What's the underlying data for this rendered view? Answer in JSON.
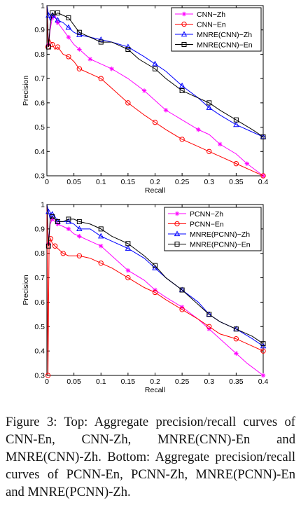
{
  "chart_data": [
    {
      "type": "line",
      "xlabel": "Recall",
      "ylabel": "Precision",
      "xlim": [
        0,
        0.4
      ],
      "ylim": [
        0.3,
        1.0
      ],
      "xticks": [
        0,
        0.05,
        0.1,
        0.15,
        0.2,
        0.25,
        0.3,
        0.35,
        0.4
      ],
      "xtick_labels": [
        "0",
        "0.05",
        "0.1",
        "0.15",
        "0.2",
        "0.25",
        "0.3",
        "0.35",
        "0.4"
      ],
      "yticks": [
        0.3,
        0.4,
        0.5,
        0.6,
        0.7,
        0.8,
        0.9,
        1
      ],
      "ytick_labels": [
        "0.3",
        "0.4",
        "0.5",
        "0.6",
        "0.7",
        "0.8",
        "0.9",
        "1"
      ],
      "grid": false,
      "legend_position": "top-right",
      "series": [
        {
          "name": "CNN−Zh",
          "color": "#ff00ff",
          "marker": "star",
          "points": [
            [
              0,
              1.0
            ],
            [
              0.003,
              0.84
            ],
            [
              0.006,
              0.9
            ],
            [
              0.01,
              0.95
            ],
            [
              0.015,
              0.96
            ],
            [
              0.02,
              0.93
            ],
            [
              0.03,
              0.9
            ],
            [
              0.04,
              0.87
            ],
            [
              0.05,
              0.84
            ],
            [
              0.06,
              0.82
            ],
            [
              0.07,
              0.8
            ],
            [
              0.08,
              0.78
            ],
            [
              0.1,
              0.76
            ],
            [
              0.12,
              0.74
            ],
            [
              0.15,
              0.7
            ],
            [
              0.18,
              0.65
            ],
            [
              0.2,
              0.61
            ],
            [
              0.22,
              0.57
            ],
            [
              0.25,
              0.53
            ],
            [
              0.28,
              0.49
            ],
            [
              0.3,
              0.47
            ],
            [
              0.32,
              0.43
            ],
            [
              0.35,
              0.39
            ],
            [
              0.37,
              0.35
            ],
            [
              0.4,
              0.3
            ]
          ]
        },
        {
          "name": "CNN−En",
          "color": "#ff0000",
          "marker": "circle",
          "points": [
            [
              0,
              1.0
            ],
            [
              0.002,
              0.83
            ],
            [
              0.005,
              0.86
            ],
            [
              0.01,
              0.84
            ],
            [
              0.015,
              0.82
            ],
            [
              0.02,
              0.83
            ],
            [
              0.03,
              0.8
            ],
            [
              0.04,
              0.79
            ],
            [
              0.05,
              0.77
            ],
            [
              0.06,
              0.74
            ],
            [
              0.08,
              0.72
            ],
            [
              0.1,
              0.7
            ],
            [
              0.12,
              0.66
            ],
            [
              0.15,
              0.6
            ],
            [
              0.18,
              0.55
            ],
            [
              0.2,
              0.52
            ],
            [
              0.22,
              0.49
            ],
            [
              0.25,
              0.45
            ],
            [
              0.28,
              0.42
            ],
            [
              0.3,
              0.4
            ],
            [
              0.32,
              0.38
            ],
            [
              0.35,
              0.35
            ],
            [
              0.38,
              0.32
            ],
            [
              0.4,
              0.3
            ]
          ]
        },
        {
          "name": "MNRE(CNN)−Zh",
          "color": "#0000ff",
          "marker": "triangle",
          "points": [
            [
              0,
              1.0
            ],
            [
              0.003,
              0.96
            ],
            [
              0.006,
              0.94
            ],
            [
              0.01,
              0.96
            ],
            [
              0.015,
              0.95
            ],
            [
              0.02,
              0.94
            ],
            [
              0.03,
              0.93
            ],
            [
              0.04,
              0.91
            ],
            [
              0.05,
              0.89
            ],
            [
              0.06,
              0.88
            ],
            [
              0.08,
              0.87
            ],
            [
              0.1,
              0.86
            ],
            [
              0.12,
              0.85
            ],
            [
              0.15,
              0.83
            ],
            [
              0.18,
              0.79
            ],
            [
              0.2,
              0.76
            ],
            [
              0.22,
              0.73
            ],
            [
              0.25,
              0.67
            ],
            [
              0.28,
              0.62
            ],
            [
              0.3,
              0.58
            ],
            [
              0.32,
              0.55
            ],
            [
              0.35,
              0.51
            ],
            [
              0.38,
              0.48
            ],
            [
              0.4,
              0.46
            ]
          ]
        },
        {
          "name": "MNRE(CNN)−En",
          "color": "#000000",
          "marker": "square",
          "points": [
            [
              0,
              1.0
            ],
            [
              0.003,
              0.83
            ],
            [
              0.006,
              0.92
            ],
            [
              0.01,
              0.97
            ],
            [
              0.015,
              0.96
            ],
            [
              0.02,
              0.97
            ],
            [
              0.03,
              0.96
            ],
            [
              0.04,
              0.95
            ],
            [
              0.05,
              0.92
            ],
            [
              0.06,
              0.89
            ],
            [
              0.08,
              0.87
            ],
            [
              0.1,
              0.85
            ],
            [
              0.12,
              0.85
            ],
            [
              0.15,
              0.82
            ],
            [
              0.17,
              0.78
            ],
            [
              0.2,
              0.74
            ],
            [
              0.22,
              0.7
            ],
            [
              0.25,
              0.65
            ],
            [
              0.28,
              0.62
            ],
            [
              0.3,
              0.6
            ],
            [
              0.32,
              0.57
            ],
            [
              0.35,
              0.53
            ],
            [
              0.38,
              0.49
            ],
            [
              0.4,
              0.46
            ]
          ]
        }
      ]
    },
    {
      "type": "line",
      "xlabel": "Recall",
      "ylabel": "Precision",
      "xlim": [
        0,
        0.4
      ],
      "ylim": [
        0.3,
        1.0
      ],
      "xticks": [
        0,
        0.05,
        0.1,
        0.15,
        0.2,
        0.25,
        0.3,
        0.35,
        0.4
      ],
      "xtick_labels": [
        "0",
        "0.05",
        "0.1",
        "0.15",
        "0.2",
        "0.25",
        "0.3",
        "0.35",
        "0.4"
      ],
      "yticks": [
        0.3,
        0.4,
        0.5,
        0.6,
        0.7,
        0.8,
        0.9,
        1
      ],
      "ytick_labels": [
        "0.3",
        "0.4",
        "0.5",
        "0.6",
        "0.7",
        "0.8",
        "0.9",
        "1"
      ],
      "grid": false,
      "legend_position": "top-right",
      "series": [
        {
          "name": "PCNN−Zh",
          "color": "#ff00ff",
          "marker": "star",
          "points": [
            [
              0,
              1.0
            ],
            [
              0.003,
              0.84
            ],
            [
              0.006,
              0.92
            ],
            [
              0.01,
              0.94
            ],
            [
              0.015,
              0.93
            ],
            [
              0.02,
              0.92
            ],
            [
              0.03,
              0.91
            ],
            [
              0.04,
              0.9
            ],
            [
              0.05,
              0.88
            ],
            [
              0.06,
              0.87
            ],
            [
              0.08,
              0.85
            ],
            [
              0.1,
              0.83
            ],
            [
              0.12,
              0.79
            ],
            [
              0.15,
              0.73
            ],
            [
              0.18,
              0.69
            ],
            [
              0.2,
              0.65
            ],
            [
              0.22,
              0.62
            ],
            [
              0.25,
              0.58
            ],
            [
              0.28,
              0.53
            ],
            [
              0.3,
              0.49
            ],
            [
              0.32,
              0.45
            ],
            [
              0.35,
              0.39
            ],
            [
              0.37,
              0.35
            ],
            [
              0.4,
              0.3
            ]
          ]
        },
        {
          "name": "PCNN−En",
          "color": "#ff0000",
          "marker": "circle",
          "points": [
            [
              0,
              1.0
            ],
            [
              0.002,
              0.3
            ],
            [
              0.004,
              0.83
            ],
            [
              0.007,
              0.86
            ],
            [
              0.01,
              0.84
            ],
            [
              0.015,
              0.83
            ],
            [
              0.02,
              0.82
            ],
            [
              0.03,
              0.8
            ],
            [
              0.04,
              0.79
            ],
            [
              0.06,
              0.79
            ],
            [
              0.08,
              0.78
            ],
            [
              0.1,
              0.76
            ],
            [
              0.12,
              0.74
            ],
            [
              0.15,
              0.7
            ],
            [
              0.18,
              0.66
            ],
            [
              0.2,
              0.64
            ],
            [
              0.22,
              0.61
            ],
            [
              0.25,
              0.57
            ],
            [
              0.28,
              0.53
            ],
            [
              0.3,
              0.5
            ],
            [
              0.32,
              0.47
            ],
            [
              0.35,
              0.45
            ],
            [
              0.38,
              0.42
            ],
            [
              0.4,
              0.4
            ]
          ]
        },
        {
          "name": "MNRE(PCNN)−Zh",
          "color": "#0000ff",
          "marker": "triangle",
          "points": [
            [
              0,
              1.0
            ],
            [
              0.003,
              0.97
            ],
            [
              0.006,
              0.94
            ],
            [
              0.01,
              0.96
            ],
            [
              0.015,
              0.95
            ],
            [
              0.02,
              0.93
            ],
            [
              0.03,
              0.93
            ],
            [
              0.04,
              0.93
            ],
            [
              0.05,
              0.92
            ],
            [
              0.06,
              0.9
            ],
            [
              0.08,
              0.9
            ],
            [
              0.1,
              0.87
            ],
            [
              0.12,
              0.85
            ],
            [
              0.15,
              0.82
            ],
            [
              0.18,
              0.78
            ],
            [
              0.2,
              0.74
            ],
            [
              0.22,
              0.7
            ],
            [
              0.25,
              0.65
            ],
            [
              0.28,
              0.6
            ],
            [
              0.3,
              0.55
            ],
            [
              0.32,
              0.52
            ],
            [
              0.35,
              0.49
            ],
            [
              0.38,
              0.45
            ],
            [
              0.4,
              0.42
            ]
          ]
        },
        {
          "name": "MNRE(PCNN)−En",
          "color": "#000000",
          "marker": "square",
          "points": [
            [
              0,
              1.0
            ],
            [
              0.003,
              0.83
            ],
            [
              0.006,
              0.94
            ],
            [
              0.01,
              0.95
            ],
            [
              0.015,
              0.94
            ],
            [
              0.02,
              0.93
            ],
            [
              0.03,
              0.93
            ],
            [
              0.04,
              0.94
            ],
            [
              0.05,
              0.94
            ],
            [
              0.06,
              0.93
            ],
            [
              0.08,
              0.92
            ],
            [
              0.1,
              0.9
            ],
            [
              0.12,
              0.87
            ],
            [
              0.15,
              0.84
            ],
            [
              0.18,
              0.79
            ],
            [
              0.2,
              0.75
            ],
            [
              0.22,
              0.7
            ],
            [
              0.25,
              0.65
            ],
            [
              0.28,
              0.59
            ],
            [
              0.3,
              0.55
            ],
            [
              0.32,
              0.52
            ],
            [
              0.35,
              0.49
            ],
            [
              0.38,
              0.46
            ],
            [
              0.4,
              0.43
            ]
          ]
        }
      ]
    }
  ],
  "caption": "Figure 3: Top: Aggregate precision/recall curves of CNN-En, CNN-Zh, MNRE(CNN)-En and MNRE(CNN)-Zh. Bottom: Aggregate precision/recall curves of PCNN-En, PCNN-Zh, MNRE(PCNN)-En and MNRE(PCNN)-Zh."
}
